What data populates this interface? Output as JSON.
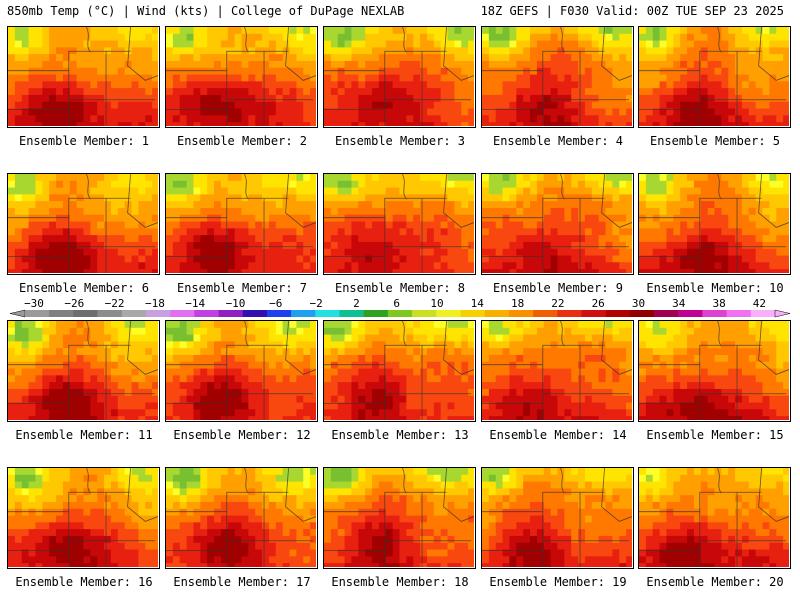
{
  "header": {
    "left": "850mb Temp (°C) | Wind (kts) | College of DuPage NEXLAB",
    "right": "18Z GEFS | F030 Valid: 00Z TUE SEP 23 2025"
  },
  "panels": [
    {
      "label": "Ensemble Member: 1"
    },
    {
      "label": "Ensemble Member: 2"
    },
    {
      "label": "Ensemble Member: 3"
    },
    {
      "label": "Ensemble Member: 4"
    },
    {
      "label": "Ensemble Member: 5"
    },
    {
      "label": "Ensemble Member: 6"
    },
    {
      "label": "Ensemble Member: 7"
    },
    {
      "label": "Ensemble Member: 8"
    },
    {
      "label": "Ensemble Member: 9"
    },
    {
      "label": "Ensemble Member: 10"
    },
    {
      "label": "Ensemble Member: 11"
    },
    {
      "label": "Ensemble Member: 12"
    },
    {
      "label": "Ensemble Member: 13"
    },
    {
      "label": "Ensemble Member: 14"
    },
    {
      "label": "Ensemble Member: 15"
    },
    {
      "label": "Ensemble Member: 16"
    },
    {
      "label": "Ensemble Member: 17"
    },
    {
      "label": "Ensemble Member: 18"
    },
    {
      "label": "Ensemble Member: 19"
    },
    {
      "label": "Ensemble Member: 20"
    }
  ],
  "colorbar": {
    "labels": [
      "−30",
      "−26",
      "−22",
      "−18",
      "−14",
      "−10",
      "−6",
      "−2",
      "2",
      "6",
      "10",
      "14",
      "18",
      "22",
      "26",
      "30",
      "34",
      "38",
      "42"
    ],
    "colors": [
      "#9a9a9a",
      "#808080",
      "#6e6e6e",
      "#8c8c8c",
      "#a8a8a8",
      "#c8a0e0",
      "#e070f0",
      "#c040e0",
      "#9020c0",
      "#3010b0",
      "#2040f0",
      "#20a0f0",
      "#20e0e0",
      "#10c090",
      "#30a020",
      "#80c820",
      "#c8e020",
      "#f0f020",
      "#f8d000",
      "#f8b000",
      "#f89000",
      "#f06000",
      "#e83010",
      "#d01010",
      "#b00000",
      "#900000",
      "#a00050",
      "#c00090",
      "#e040d0",
      "#f070f0",
      "#f8b0f8"
    ]
  },
  "ramp": [
    "#ffff28",
    "#ffe400",
    "#ffc800",
    "#ffa000",
    "#ff7800",
    "#f84810",
    "#e82010",
    "#c80808",
    "#a00000"
  ]
}
